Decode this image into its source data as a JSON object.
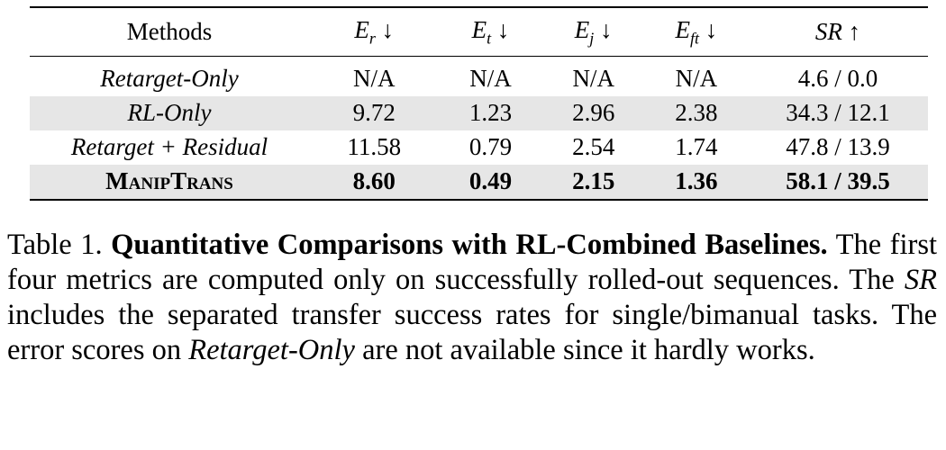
{
  "table": {
    "header": [
      "Methods",
      {
        "base": "E",
        "sub": "r",
        "arrow": "↓"
      },
      {
        "base": "E",
        "sub": "t",
        "arrow": "↓"
      },
      {
        "base": "E",
        "sub": "j",
        "arrow": "↓"
      },
      {
        "base": "E",
        "sub": "ft",
        "arrow": "↓"
      },
      {
        "base": "SR",
        "arrow": "↑"
      }
    ],
    "rows": [
      [
        "Retarget-Only",
        "N/A",
        "N/A",
        "N/A",
        "N/A",
        "4.6 / 0.0"
      ],
      [
        "RL-Only",
        "9.72",
        "1.23",
        "2.96",
        "2.38",
        "34.3 / 12.1"
      ],
      [
        "Retarget + Residual",
        "11.58",
        "0.79",
        "2.54",
        "1.74",
        "47.8 / 13.9"
      ],
      [
        "ManipTrans",
        "8.60",
        "0.49",
        "2.15",
        "1.36",
        "58.1 / 39.5"
      ]
    ]
  },
  "caption": {
    "label": "Table 1.",
    "title": "Quantitative Comparisons with RL-Combined Baselines.",
    "body": [
      "The first four metrics are computed only on successfully rolled-out sequences. The ",
      "SR",
      " includes the separated transfer success rates for single/bimanual tasks. The error scores on ",
      "Retarget-Only",
      " are not available since it hardly works."
    ]
  }
}
